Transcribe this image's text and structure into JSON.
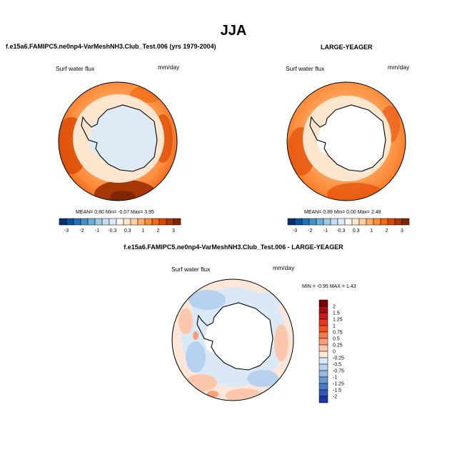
{
  "page": {
    "season": "JJA",
    "test_case": "f.e15a6.FAMIPC5.ne0np4-VarMeshNH3.Club_Test.006 (yrs 1979-2004)",
    "reference": "LARGE-YEAGER",
    "difference_title": "f.e15a6.FAMIPC5.ne0np4-VarMeshNH3.Club_Test.006 - LARGE-YEAGER"
  },
  "panels": {
    "left": {
      "variable": "Surf water flux",
      "units": "mm/day",
      "stats_text": "MEAN=   0.80  Min=  -0.07  Max=   3.95",
      "mean": 0.8,
      "min": -0.07,
      "max": 3.95
    },
    "right": {
      "variable": "Surf water flux",
      "units": "mm/day",
      "stats_text": "MEAN=   0.89  Min=   0.00  Max=   2.48",
      "mean": 0.89,
      "min": 0.0,
      "max": 2.48
    },
    "diff": {
      "variable": "Surf water flux",
      "units": "mm/day",
      "stats_text": "MIN =  -0.95 MAX =   1.43",
      "min": -0.95,
      "max": 1.43
    }
  },
  "colorbar_field": {
    "tick_labels": [
      "-3",
      "-2",
      "-1",
      "-0.3",
      "0.3",
      "1",
      "2",
      "3"
    ],
    "colors": [
      "#08306b",
      "#08519c",
      "#2171b5",
      "#4292c6",
      "#6baed6",
      "#9ecae1",
      "#c6dbef",
      "#deebf7",
      "#fff5eb",
      "#fee6ce",
      "#fdd0a2",
      "#fdae6b",
      "#fd8d3c",
      "#f16913",
      "#d94801",
      "#a63603",
      "#7f2704"
    ]
  },
  "colorbar_diff": {
    "tick_labels": [
      "2",
      "1.5",
      "1.25",
      "1",
      "0.75",
      "0.5",
      "0.25",
      "0",
      "-0.25",
      "-0.5",
      "-0.75",
      "-1",
      "-1.25",
      "-1.5",
      "-2"
    ],
    "colors": [
      "#7a0000",
      "#a50f0f",
      "#cb181d",
      "#e8341c",
      "#f4511e",
      "#f87a4a",
      "#fb9e7c",
      "#fcc7ad",
      "#fee6d9",
      "#dbe9f6",
      "#b6d2ee",
      "#92b8e3",
      "#6b9ad6",
      "#4a79c7",
      "#2f55b8",
      "#1b36a6"
    ]
  }
}
